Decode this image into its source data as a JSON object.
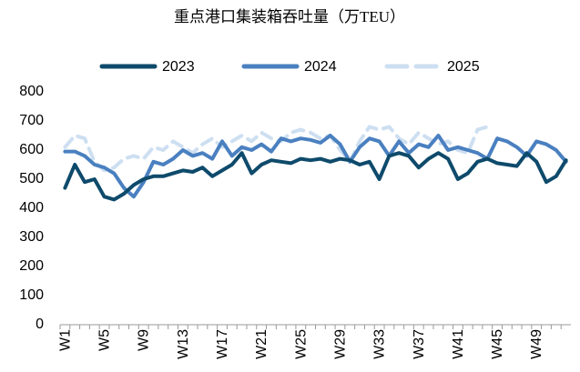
{
  "chart_data": {
    "type": "line",
    "title": "重点港口集装箱吞吐量（万TEU）",
    "categories": [
      "W1",
      null,
      null,
      null,
      "W5",
      null,
      null,
      null,
      "W9",
      null,
      null,
      null,
      "W13",
      null,
      null,
      null,
      "W17",
      null,
      null,
      null,
      "W21",
      null,
      null,
      null,
      "W25",
      null,
      null,
      null,
      "W29",
      null,
      null,
      null,
      "W33",
      null,
      null,
      null,
      "W37",
      null,
      null,
      null,
      "W41",
      null,
      null,
      null,
      "W45",
      null,
      null,
      null,
      "W49",
      null,
      null,
      null
    ],
    "series": [
      {
        "name": "2023",
        "color": "#0e4a6b",
        "dash": false,
        "values": [
          470,
          550,
          490,
          500,
          440,
          430,
          450,
          480,
          500,
          510,
          510,
          520,
          530,
          525,
          540,
          510,
          530,
          550,
          590,
          520,
          550,
          565,
          560,
          555,
          570,
          565,
          570,
          560,
          570,
          565,
          550,
          560,
          500,
          580,
          590,
          580,
          540,
          570,
          590,
          570,
          500,
          520,
          560,
          570,
          555,
          550,
          545,
          590,
          560,
          490,
          510,
          565
        ]
      },
      {
        "name": "2024",
        "color": "#4a80c0",
        "dash": false,
        "values": [
          595,
          595,
          580,
          550,
          540,
          520,
          470,
          440,
          490,
          560,
          550,
          570,
          600,
          580,
          590,
          570,
          630,
          580,
          610,
          600,
          620,
          595,
          640,
          630,
          640,
          635,
          625,
          650,
          620,
          560,
          610,
          640,
          630,
          580,
          630,
          590,
          620,
          610,
          650,
          600,
          610,
          600,
          590,
          570,
          640,
          630,
          610,
          580,
          630,
          620,
          600,
          560
        ]
      },
      {
        "name": "2025",
        "color": "#cddff1",
        "dash": true,
        "values": [
          610,
          650,
          640,
          560,
          530,
          540,
          570,
          580,
          570,
          610,
          600,
          630,
          610,
          590,
          620,
          640,
          610,
          630,
          650,
          630,
          660,
          640,
          630,
          660,
          670,
          660,
          640,
          650,
          600,
          560,
          630,
          680,
          670,
          680,
          640,
          620,
          660,
          640,
          620,
          630,
          600,
          590,
          670,
          680,
          null,
          null,
          null,
          null,
          null,
          null,
          null,
          null
        ]
      }
    ],
    "ylim": [
      0,
      800
    ],
    "yticks": [
      0,
      100,
      200,
      300,
      400,
      500,
      600,
      700,
      800
    ]
  }
}
